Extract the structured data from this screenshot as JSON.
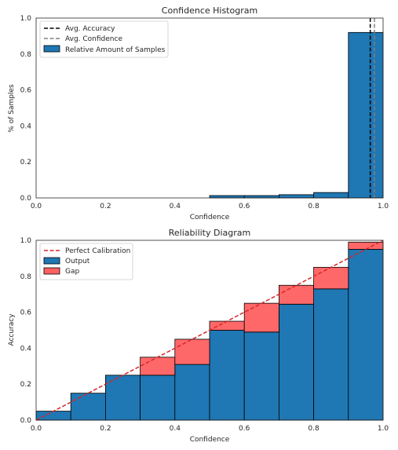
{
  "chart_data": [
    {
      "type": "bar",
      "title": "Confidence Histogram",
      "xlabel": "Confidence",
      "ylabel": "% of Samples",
      "xlim": [
        0,
        1
      ],
      "ylim": [
        0,
        1
      ],
      "xticks": [
        "0.0",
        "0.2",
        "0.4",
        "0.6",
        "0.8",
        "1.0"
      ],
      "yticks": [
        "0.0",
        "0.2",
        "0.4",
        "0.6",
        "0.8",
        "1.0"
      ],
      "bin_edges": [
        0.0,
        0.1,
        0.2,
        0.3,
        0.4,
        0.5,
        0.6,
        0.7,
        0.8,
        0.9,
        1.0
      ],
      "values": [
        0.0,
        0.0,
        0.0,
        0.0,
        0.0,
        0.013,
        0.013,
        0.018,
        0.03,
        0.92
      ],
      "avg_accuracy": 0.963,
      "avg_confidence": 0.975,
      "grid": false,
      "legend_position": "top-left",
      "legend": {
        "avg_accuracy": "Avg. Accuracy",
        "avg_confidence": "Avg. Confidence",
        "samples": "Relative Amount of Samples"
      },
      "colors": {
        "bar": "#1f77b4",
        "accuracy_line": "#000000",
        "confidence_line": "#808080"
      }
    },
    {
      "type": "bar",
      "title": "Reliability Diagram",
      "xlabel": "Confidence",
      "ylabel": "Accuracy",
      "xlim": [
        0,
        1
      ],
      "ylim": [
        0,
        1
      ],
      "xticks": [
        "0.0",
        "0.2",
        "0.4",
        "0.6",
        "0.8",
        "1.0"
      ],
      "yticks": [
        "0.0",
        "0.2",
        "0.4",
        "0.6",
        "0.8",
        "1.0"
      ],
      "bin_edges": [
        0.0,
        0.1,
        0.2,
        0.3,
        0.4,
        0.5,
        0.6,
        0.7,
        0.8,
        0.9,
        1.0
      ],
      "output": [
        0.05,
        0.15,
        0.25,
        0.25,
        0.31,
        0.5,
        0.49,
        0.645,
        0.73,
        0.95
      ],
      "expected": [
        0.05,
        0.15,
        0.25,
        0.35,
        0.45,
        0.55,
        0.65,
        0.75,
        0.85,
        0.99
      ],
      "grid": false,
      "legend_position": "top-left",
      "legend": {
        "perfect": "Perfect Calibration",
        "output": "Output",
        "gap": "Gap"
      },
      "colors": {
        "output": "#1f77b4",
        "gap": "#ff6060",
        "perfect_line": "#d62728"
      }
    }
  ]
}
